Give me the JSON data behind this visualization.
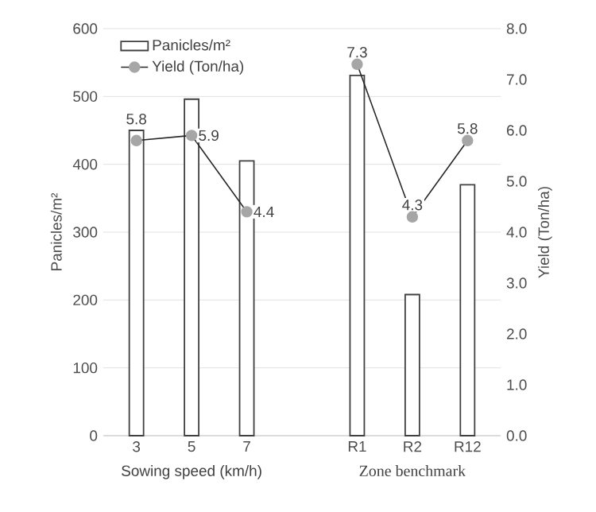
{
  "chart_data": {
    "type": "bar",
    "categories": [
      "3",
      "5",
      "7",
      null,
      "R1",
      "R2",
      "R12"
    ],
    "series": [
      {
        "name": "Panicles/m²",
        "color": "#ffffff",
        "values": [
          450,
          496,
          405,
          null,
          531,
          208,
          370
        ]
      },
      {
        "name": "Yield (Ton/ha)",
        "type": "line",
        "axis": "y2",
        "color": "#a6a6a6",
        "marker": "circle",
        "values": [
          5.8,
          5.9,
          4.4,
          null,
          7.3,
          4.3,
          5.8
        ],
        "value_labels": [
          "5.8",
          "5.9",
          "4.4",
          null,
          "7.3",
          "4.3",
          "5.8"
        ]
      }
    ],
    "ylabel": "Panicles/m²",
    "y2label": "Yield (Ton/ha)",
    "ylim": [
      0,
      600
    ],
    "yticks": [
      0,
      100,
      200,
      300,
      400,
      500,
      600
    ],
    "y2lim": [
      0,
      8
    ],
    "y2ticks": [
      {
        "value": 0,
        "label": "0.0"
      },
      {
        "value": 1,
        "label": "1.0"
      },
      {
        "value": 2,
        "label": "2.0"
      },
      {
        "value": 3,
        "label": "3.0"
      },
      {
        "value": 4,
        "label": "4.0"
      },
      {
        "value": 5,
        "label": "5.0"
      },
      {
        "value": 6,
        "label": "6.0"
      },
      {
        "value": 7,
        "label": "7.0"
      },
      {
        "value": 8,
        "label": "8.0"
      }
    ],
    "annotations": [
      "Sowing speed (km/h)",
      "Zone benchmark"
    ],
    "grid": "y",
    "legend": "top left"
  }
}
